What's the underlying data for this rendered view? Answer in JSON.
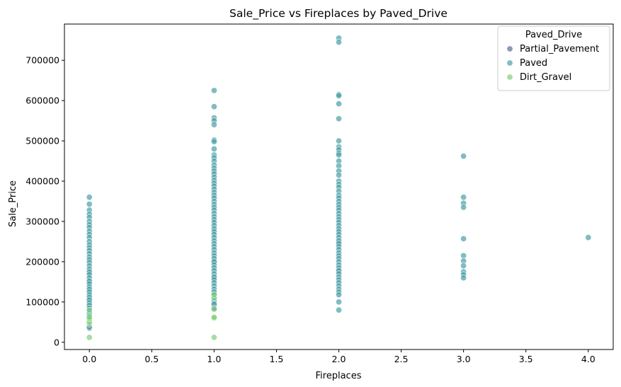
{
  "chart_data": {
    "type": "scatter",
    "title": "Sale_Price vs Fireplaces by Paved_Drive",
    "xlabel": "Fireplaces",
    "ylabel": "Sale_Price",
    "xlim": [
      -0.2,
      4.2
    ],
    "ylim": [
      -18000,
      790000
    ],
    "xticks": [
      0.0,
      0.5,
      1.0,
      1.5,
      2.0,
      2.5,
      3.0,
      3.5,
      4.0
    ],
    "xtick_labels": [
      "0.0",
      "0.5",
      "1.0",
      "1.5",
      "2.0",
      "2.5",
      "3.0",
      "3.5",
      "4.0"
    ],
    "yticks": [
      0,
      100000,
      200000,
      300000,
      400000,
      500000,
      600000,
      700000
    ],
    "ytick_labels": [
      "0",
      "100000",
      "200000",
      "300000",
      "400000",
      "500000",
      "600000",
      "700000"
    ],
    "grid": false,
    "legend": {
      "title": "Paved_Drive",
      "placement": "top-right",
      "entries": [
        "Partial_Pavement",
        "Paved",
        "Dirt_Gravel"
      ]
    },
    "series": [
      {
        "name": "Partial_Pavement",
        "color": "#5a6f9c",
        "points": [
          [
            0,
            35000
          ],
          [
            0,
            68000
          ],
          [
            0,
            88000
          ],
          [
            0,
            105000
          ],
          [
            0,
            128000
          ],
          [
            0,
            150000
          ],
          [
            0,
            172000
          ],
          [
            1,
            85000
          ],
          [
            1,
            92000
          ],
          [
            1,
            120000
          ],
          [
            1,
            160000
          ],
          [
            1,
            200000
          ],
          [
            2,
            175000
          ],
          [
            2,
            248000
          ]
        ]
      },
      {
        "name": "Paved",
        "color": "#4aa0a8",
        "points": [
          [
            0,
            360000
          ],
          [
            0,
            343000
          ],
          [
            0,
            328000
          ],
          [
            0,
            318000
          ],
          [
            0,
            310000
          ],
          [
            0,
            300000
          ],
          [
            0,
            292000
          ],
          [
            0,
            285000
          ],
          [
            0,
            276000
          ],
          [
            0,
            268000
          ],
          [
            0,
            260000
          ],
          [
            0,
            250000
          ],
          [
            0,
            242000
          ],
          [
            0,
            235000
          ],
          [
            0,
            228000
          ],
          [
            0,
            220000
          ],
          [
            0,
            212000
          ],
          [
            0,
            205000
          ],
          [
            0,
            198000
          ],
          [
            0,
            190000
          ],
          [
            0,
            182000
          ],
          [
            0,
            175000
          ],
          [
            0,
            168000
          ],
          [
            0,
            160000
          ],
          [
            0,
            152000
          ],
          [
            0,
            145000
          ],
          [
            0,
            138000
          ],
          [
            0,
            132000
          ],
          [
            0,
            125000
          ],
          [
            0,
            118000
          ],
          [
            0,
            112000
          ],
          [
            0,
            105000
          ],
          [
            0,
            98000
          ],
          [
            0,
            92000
          ],
          [
            0,
            85000
          ],
          [
            0,
            78000
          ],
          [
            0,
            72000
          ],
          [
            0,
            65000
          ],
          [
            0,
            55000
          ],
          [
            0,
            38000
          ],
          [
            1,
            625000
          ],
          [
            1,
            585000
          ],
          [
            1,
            557000
          ],
          [
            1,
            550000
          ],
          [
            1,
            540000
          ],
          [
            1,
            502000
          ],
          [
            1,
            498000
          ],
          [
            1,
            480000
          ],
          [
            1,
            465000
          ],
          [
            1,
            458000
          ],
          [
            1,
            450000
          ],
          [
            1,
            440000
          ],
          [
            1,
            432000
          ],
          [
            1,
            425000
          ],
          [
            1,
            418000
          ],
          [
            1,
            410000
          ],
          [
            1,
            402000
          ],
          [
            1,
            395000
          ],
          [
            1,
            388000
          ],
          [
            1,
            380000
          ],
          [
            1,
            372000
          ],
          [
            1,
            365000
          ],
          [
            1,
            358000
          ],
          [
            1,
            350000
          ],
          [
            1,
            342000
          ],
          [
            1,
            335000
          ],
          [
            1,
            328000
          ],
          [
            1,
            320000
          ],
          [
            1,
            312000
          ],
          [
            1,
            305000
          ],
          [
            1,
            298000
          ],
          [
            1,
            290000
          ],
          [
            1,
            282000
          ],
          [
            1,
            275000
          ],
          [
            1,
            268000
          ],
          [
            1,
            260000
          ],
          [
            1,
            252000
          ],
          [
            1,
            245000
          ],
          [
            1,
            238000
          ],
          [
            1,
            230000
          ],
          [
            1,
            222000
          ],
          [
            1,
            215000
          ],
          [
            1,
            208000
          ],
          [
            1,
            200000
          ],
          [
            1,
            192000
          ],
          [
            1,
            185000
          ],
          [
            1,
            178000
          ],
          [
            1,
            170000
          ],
          [
            1,
            162000
          ],
          [
            1,
            155000
          ],
          [
            1,
            148000
          ],
          [
            1,
            140000
          ],
          [
            1,
            132000
          ],
          [
            1,
            125000
          ],
          [
            1,
            118000
          ],
          [
            1,
            110000
          ],
          [
            1,
            102000
          ],
          [
            1,
            95000
          ],
          [
            1,
            85000
          ],
          [
            2,
            755000
          ],
          [
            2,
            745000
          ],
          [
            2,
            615000
          ],
          [
            2,
            612000
          ],
          [
            2,
            592000
          ],
          [
            2,
            555000
          ],
          [
            2,
            500000
          ],
          [
            2,
            485000
          ],
          [
            2,
            478000
          ],
          [
            2,
            470000
          ],
          [
            2,
            465000
          ],
          [
            2,
            450000
          ],
          [
            2,
            438000
          ],
          [
            2,
            425000
          ],
          [
            2,
            415000
          ],
          [
            2,
            400000
          ],
          [
            2,
            392000
          ],
          [
            2,
            385000
          ],
          [
            2,
            375000
          ],
          [
            2,
            365000
          ],
          [
            2,
            358000
          ],
          [
            2,
            350000
          ],
          [
            2,
            342000
          ],
          [
            2,
            335000
          ],
          [
            2,
            328000
          ],
          [
            2,
            320000
          ],
          [
            2,
            312000
          ],
          [
            2,
            305000
          ],
          [
            2,
            298000
          ],
          [
            2,
            290000
          ],
          [
            2,
            282000
          ],
          [
            2,
            275000
          ],
          [
            2,
            268000
          ],
          [
            2,
            260000
          ],
          [
            2,
            252000
          ],
          [
            2,
            245000
          ],
          [
            2,
            238000
          ],
          [
            2,
            230000
          ],
          [
            2,
            222000
          ],
          [
            2,
            215000
          ],
          [
            2,
            208000
          ],
          [
            2,
            200000
          ],
          [
            2,
            192000
          ],
          [
            2,
            185000
          ],
          [
            2,
            178000
          ],
          [
            2,
            170000
          ],
          [
            2,
            162000
          ],
          [
            2,
            155000
          ],
          [
            2,
            148000
          ],
          [
            2,
            140000
          ],
          [
            2,
            132000
          ],
          [
            2,
            125000
          ],
          [
            2,
            118000
          ],
          [
            2,
            100000
          ],
          [
            2,
            80000
          ],
          [
            3,
            462000
          ],
          [
            3,
            360000
          ],
          [
            3,
            345000
          ],
          [
            3,
            335000
          ],
          [
            3,
            257000
          ],
          [
            3,
            215000
          ],
          [
            3,
            202000
          ],
          [
            3,
            190000
          ],
          [
            3,
            175000
          ],
          [
            3,
            168000
          ],
          [
            3,
            160000
          ],
          [
            4,
            260000
          ]
        ]
      },
      {
        "name": "Dirt_Gravel",
        "color": "#7fd07a",
        "points": [
          [
            0,
            12000
          ],
          [
            0,
            45000
          ],
          [
            0,
            50000
          ],
          [
            0,
            58000
          ],
          [
            0,
            62000
          ],
          [
            0,
            80000
          ],
          [
            1,
            12000
          ],
          [
            1,
            60000
          ],
          [
            1,
            62000
          ],
          [
            1,
            82000
          ],
          [
            1,
            110000
          ],
          [
            1,
            118000
          ]
        ]
      }
    ]
  }
}
